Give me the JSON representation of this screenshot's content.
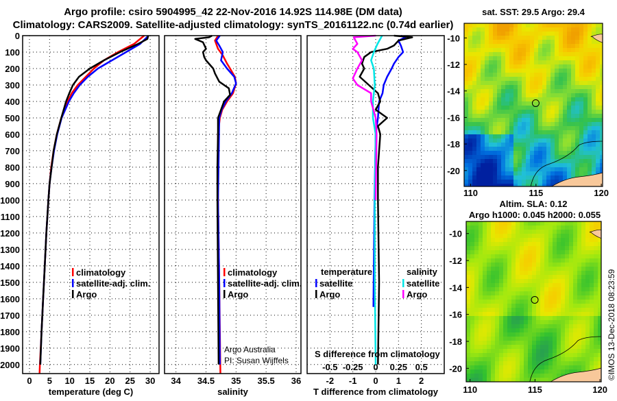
{
  "title": {
    "line1": "Argo profile: csiro 5904995_42 22-Nov-2016 14.92S 114.98E (DM data)",
    "line2": "Climatology: CARS2009. Satellite-adjusted climatology: synTS_20161122.nc (0.74d earlier)"
  },
  "colors": {
    "climatology": "#ff0000",
    "satellite": "#0000ff",
    "argo": "#000000",
    "s_satellite": "#00e5e5",
    "s_argo": "#ff00ff",
    "land": "#f8c89a"
  },
  "credits": {
    "line1": "Argo Australia",
    "line2": "PI: Susan Wijffels",
    "stamp": "©IMOS 13-Dec-2018 08:23:59"
  },
  "chart_data": [
    {
      "type": "line",
      "name": "temperature",
      "xlabel": "temperature (deg C)",
      "ylabel": "depth",
      "xlim": [
        -1.7,
        32.2
      ],
      "ylim": [
        0,
        2055
      ],
      "xticks": [
        "0",
        "5",
        "10",
        "15",
        "20",
        "25",
        "30"
      ],
      "yticks": [
        "0",
        "100",
        "200",
        "300",
        "400",
        "500",
        "600",
        "700",
        "800",
        "900",
        "1000",
        "1100",
        "1200",
        "1300",
        "1400",
        "1500",
        "1600",
        "1700",
        "1800",
        "1900",
        "2000"
      ],
      "legend": [
        "climatology",
        "satellite-adj. clim.",
        "Argo"
      ],
      "series": [
        {
          "name": "climatology",
          "color": "#ff0000",
          "depth": [
            0,
            50,
            100,
            150,
            200,
            250,
            300,
            350,
            400,
            500,
            600,
            700,
            800,
            900,
            1000,
            1200,
            1400,
            1600,
            1800,
            2000,
            2055
          ],
          "values": [
            28.5,
            26,
            22,
            18.5,
            16,
            14,
            12,
            10.5,
            9.5,
            7.9,
            6.8,
            6.0,
            5.4,
            5.0,
            4.7,
            4.2,
            3.8,
            3.4,
            3.0,
            2.6,
            2.5
          ]
        },
        {
          "name": "satellite-adj. clim.",
          "color": "#0000ff",
          "depth": [
            0,
            50,
            100,
            150,
            200,
            250,
            300,
            350,
            400,
            500,
            600,
            700,
            800,
            900,
            1000,
            1200,
            1400,
            1600,
            1800,
            2000
          ],
          "values": [
            29.6,
            27.5,
            24,
            20.5,
            17,
            14.5,
            12.5,
            11,
            9.8,
            8.0,
            6.9,
            6.1,
            5.5,
            5.0,
            4.7,
            4.2,
            3.8,
            3.4,
            3.0,
            2.7
          ]
        },
        {
          "name": "Argo",
          "color": "#000000",
          "depth": [
            0,
            20,
            50,
            100,
            150,
            200,
            250,
            300,
            350,
            400,
            500,
            600,
            700,
            800,
            900,
            1000,
            1200,
            1400,
            1600,
            1800,
            2000
          ],
          "values": [
            29.5,
            29.3,
            27,
            22.5,
            18.5,
            15,
            12.3,
            10.8,
            9.9,
            9.1,
            7.9,
            6.8,
            6.0,
            5.5,
            5.0,
            4.7,
            4.2,
            3.8,
            3.4,
            3.0,
            2.7
          ]
        }
      ]
    },
    {
      "type": "line",
      "name": "salinity",
      "xlabel": "salinity",
      "ylabel": "depth",
      "xlim": [
        33.81,
        36.08
      ],
      "ylim": [
        0,
        2055
      ],
      "xticks": [
        "34",
        "34.5",
        "35",
        "35.5",
        "36"
      ],
      "legend": [
        "climatology",
        "satellite-adj. clim.",
        "Argo"
      ],
      "series": [
        {
          "name": "climatology",
          "color": "#ff0000",
          "depth": [
            0,
            30,
            80,
            120,
            170,
            200,
            250,
            290,
            350,
            400,
            450,
            500,
            600,
            1000,
            1500,
            2055
          ],
          "values": [
            34.7,
            34.65,
            34.7,
            34.78,
            34.85,
            34.9,
            34.98,
            35.0,
            34.95,
            34.85,
            34.77,
            34.73,
            34.7,
            34.7,
            34.72,
            34.74
          ]
        },
        {
          "name": "satellite-adj. clim.",
          "color": "#0000ff",
          "depth": [
            0,
            30,
            60,
            100,
            150,
            200,
            250,
            290,
            350,
            400,
            450,
            500,
            1000,
            1500,
            2000
          ],
          "values": [
            34.73,
            34.67,
            34.72,
            34.78,
            34.75,
            34.85,
            34.97,
            35.0,
            34.93,
            34.83,
            34.76,
            34.72,
            34.7,
            34.72,
            34.73
          ]
        },
        {
          "name": "Argo",
          "color": "#000000",
          "depth": [
            0,
            10,
            20,
            40,
            80,
            100,
            130,
            150,
            200,
            230,
            280,
            320,
            360,
            400,
            450,
            500,
            600,
            800,
            1000,
            1500,
            2000
          ],
          "values": [
            34.6,
            34.55,
            34.32,
            34.45,
            34.5,
            34.45,
            34.47,
            34.5,
            34.62,
            34.65,
            34.72,
            34.88,
            34.9,
            34.8,
            34.75,
            34.7,
            34.7,
            34.69,
            34.69,
            34.7,
            34.71
          ]
        }
      ]
    },
    {
      "type": "line",
      "name": "differences",
      "xlabel": "T difference from climatology",
      "x2label": "S difference from climatology",
      "xlim": [
        -3,
        3
      ],
      "x2lim": [
        -0.75,
        0.75
      ],
      "ylim": [
        0,
        2055
      ],
      "xticks": [
        "-2",
        "-1",
        "0",
        "1",
        "2"
      ],
      "x2ticks": [
        "-0.5",
        "-0.25",
        "0",
        "0.25",
        "0.5"
      ],
      "legend_t_title": "temperature",
      "legend_s_title": "salinity",
      "legend": [
        "satellite",
        "Argo",
        "satellite",
        "Argo"
      ],
      "series": [
        {
          "name": "T satellite",
          "axis": "T",
          "color": "#0000ff",
          "depth": [
            0,
            10,
            30,
            60,
            100,
            130,
            170,
            200,
            250,
            300,
            350,
            400,
            500,
            600,
            1000,
            1650
          ],
          "values": [
            1.1,
            1.3,
            1.0,
            1.1,
            1.2,
            1.0,
            0.8,
            0.7,
            0.5,
            0.35,
            0.3,
            0.15,
            0.1,
            0.0,
            -0.05,
            -0.1
          ]
        },
        {
          "name": "T Argo",
          "axis": "T",
          "color": "#000000",
          "depth": [
            0,
            10,
            30,
            60,
            80,
            100,
            130,
            170,
            200,
            250,
            300,
            350,
            400,
            450,
            500,
            550,
            600,
            800,
            1000,
            1500,
            2000
          ],
          "values": [
            0.8,
            1.6,
            1.0,
            0.8,
            0.5,
            -0.2,
            -0.5,
            -0.6,
            -0.5,
            -0.7,
            -0.3,
            0.1,
            0.2,
            0.0,
            0.5,
            0.1,
            0.2,
            0.1,
            0.1,
            0.15,
            0.1
          ]
        },
        {
          "name": "S satellite",
          "axis": "S",
          "color": "#00e5e5",
          "depth": [
            0,
            50,
            100,
            150,
            200,
            300,
            400,
            500,
            600,
            1000,
            1500,
            2000
          ],
          "values": [
            0.07,
            0.02,
            -0.02,
            -0.05,
            -0.02,
            -0.01,
            -0.03,
            -0.03,
            0.0,
            -0.01,
            -0.01,
            0.0
          ]
        },
        {
          "name": "S Argo",
          "axis": "S",
          "color": "#ff00ff",
          "depth": [
            0,
            10,
            50,
            80,
            100,
            150,
            200,
            260,
            300,
            350,
            400,
            500,
            600,
            1000
          ],
          "values": [
            0,
            -0.24,
            -0.2,
            -0.25,
            -0.2,
            -0.15,
            -0.2,
            -0.25,
            -0.2,
            -0.05,
            -0.05,
            0,
            0.01,
            0
          ]
        }
      ]
    },
    {
      "type": "heatmap",
      "name": "sst-map",
      "title": "sat. SST: 29.5 Argo: 29.4",
      "xlim": [
        109.5,
        120.1
      ],
      "ylim": [
        -21.2,
        -8.9
      ],
      "xticks": [
        "110",
        "115",
        "120"
      ],
      "yticks": [
        "-10",
        "-12",
        "-14",
        "-16",
        "-18",
        "-20"
      ],
      "float": {
        "lon": 114.98,
        "lat": -14.92
      }
    },
    {
      "type": "heatmap",
      "name": "sla-map",
      "title": "Altim. SLA: 0.12",
      "subtitle": "Argo h1000: 0.045 h2000: 0.055",
      "xlim": [
        109.7,
        120.1
      ],
      "ylim": [
        -21.0,
        -9.1
      ],
      "xticks": [
        "110",
        "115",
        "120"
      ],
      "yticks": [
        "-10",
        "-12",
        "-14",
        "-16",
        "-18",
        "-20"
      ],
      "float": {
        "lon": 114.98,
        "lat": -14.92
      }
    }
  ]
}
